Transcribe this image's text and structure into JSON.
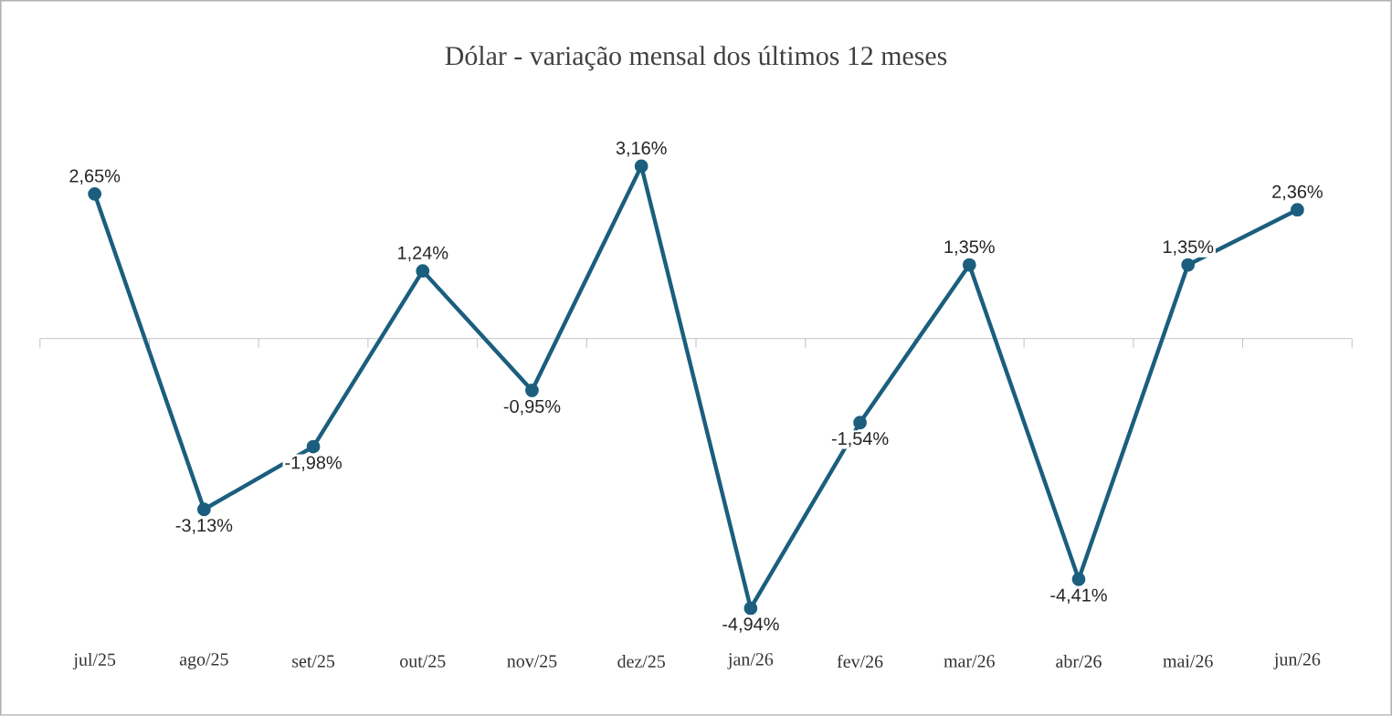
{
  "chart_data": {
    "type": "line",
    "title": "Dólar  -  variação mensal dos últimos 12 meses",
    "categories": [
      "jul/25",
      "ago/25",
      "set/25",
      "out/25",
      "nov/25",
      "dez/25",
      "jan/26",
      "fev/26",
      "mar/26",
      "abr/26",
      "mai/26",
      "jun/26"
    ],
    "series": [
      {
        "color": "#1b5e7e",
        "values": [
          2.65,
          -3.13,
          -1.98,
          1.24,
          -0.95,
          3.16,
          -4.94,
          -1.54,
          1.35,
          -4.41,
          1.35,
          2.36
        ],
        "value_labels": [
          "2,65%",
          "-3,13%",
          "-1,98%",
          "1,24%",
          "-0,95%",
          "3,16%",
          "-4,94%",
          "-1,54%",
          "1,35%",
          "-4,41%",
          "1,35%",
          "2,36%"
        ]
      }
    ],
    "marker": "circle"
  }
}
